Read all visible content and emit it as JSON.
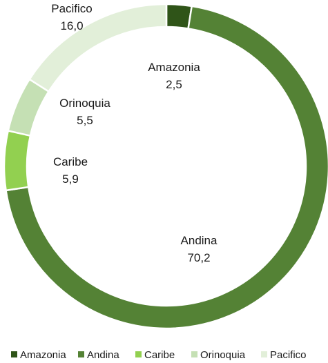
{
  "chart_data": {
    "type": "donut",
    "categories": [
      "Amazonia",
      "Andina",
      "Caribe",
      "Orinoquia",
      "Pacifico"
    ],
    "values": [
      2.5,
      70.2,
      5.9,
      5.5,
      16.0
    ],
    "value_labels": [
      "2,5",
      "70,2",
      "5,9",
      "5,5",
      "16,0"
    ],
    "colors": [
      "#2f5418",
      "#548235",
      "#92d050",
      "#c5e0b4",
      "#e2efd9"
    ],
    "start_angle_deg": 0,
    "direction": "clockwise",
    "legend": {
      "position": "bottom",
      "items": [
        "Amazonia",
        "Andina",
        "Caribe",
        "Orinoquia",
        "Pacifico"
      ]
    }
  }
}
